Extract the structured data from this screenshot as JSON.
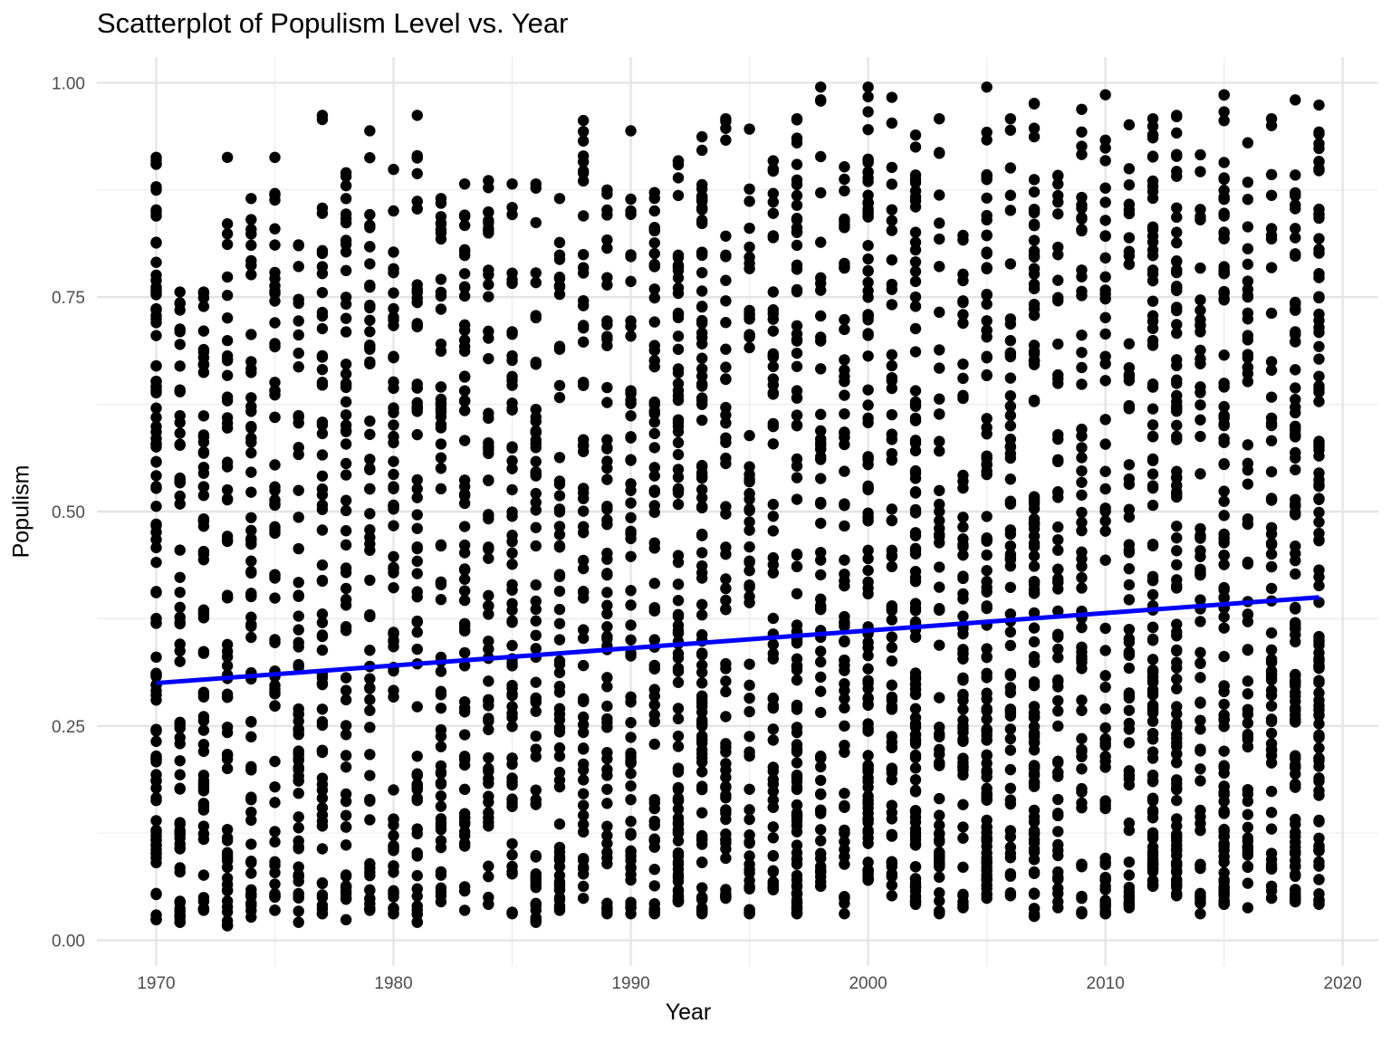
{
  "chart_data": {
    "type": "scatter",
    "title": "Scatterplot of Populism Level vs. Year",
    "xlabel": "Year",
    "ylabel": "Populism",
    "xlim": [
      1967.5,
      2021.5
    ],
    "ylim": [
      -0.03,
      1.03
    ],
    "x_ticks": [
      1970,
      1980,
      1990,
      2000,
      2010,
      2020
    ],
    "x_tick_labels": [
      "1970",
      "1980",
      "1990",
      "2000",
      "2010",
      "2020"
    ],
    "y_ticks": [
      0.0,
      0.25,
      0.5,
      0.75,
      1.0
    ],
    "y_tick_labels": [
      "0.00",
      "0.25",
      "0.50",
      "0.75",
      "1.00"
    ],
    "grid": true,
    "legend": "none",
    "point_color": "#000000",
    "series": [
      {
        "type": "scatter",
        "years": [
          1970,
          1971,
          1972,
          1973,
          1974,
          1975,
          1976,
          1977,
          1978,
          1979,
          1980,
          1981,
          1982,
          1983,
          1984,
          1985,
          1986,
          1987,
          1988,
          1989,
          1990,
          1991,
          1992,
          1993,
          1994,
          1995,
          1996,
          1997,
          1998,
          1999,
          2000,
          2001,
          2002,
          2003,
          2004,
          2005,
          2006,
          2007,
          2008,
          2009,
          2010,
          2011,
          2012,
          2013,
          2014,
          2015,
          2016,
          2017,
          2018,
          2019
        ],
        "y_min": [
          0.024,
          0.021,
          0.035,
          0.017,
          0.027,
          0.035,
          0.021,
          0.031,
          0.024,
          0.035,
          0.031,
          0.021,
          0.045,
          0.035,
          0.042,
          0.031,
          0.021,
          0.035,
          0.049,
          0.031,
          0.031,
          0.031,
          0.045,
          0.031,
          0.049,
          0.031,
          0.059,
          0.031,
          0.063,
          0.031,
          0.07,
          0.052,
          0.042,
          0.031,
          0.038,
          0.049,
          0.052,
          0.028,
          0.038,
          0.031,
          0.031,
          0.038,
          0.063,
          0.052,
          0.031,
          0.042,
          0.038,
          0.049,
          0.045,
          0.042
        ],
        "y_max": [
          0.913,
          0.756,
          0.756,
          0.913,
          0.865,
          0.913,
          0.811,
          0.962,
          0.895,
          0.944,
          0.899,
          0.962,
          0.865,
          0.882,
          0.886,
          0.882,
          0.882,
          0.865,
          0.956,
          0.875,
          0.944,
          0.872,
          0.909,
          0.937,
          0.958,
          0.946,
          0.909,
          0.958,
          0.995,
          0.902,
          0.995,
          0.983,
          0.939,
          0.958,
          0.822,
          0.995,
          0.958,
          0.976,
          0.892,
          0.969,
          0.986,
          0.951,
          0.958,
          0.962,
          0.916,
          0.986,
          0.93,
          0.958,
          0.98,
          0.974
        ],
        "high_spread_years": [
          1970,
          1992,
          1993,
          1997,
          2000,
          2002,
          2005,
          2007,
          2012,
          2013,
          2015,
          2018,
          2019
        ],
        "approx_points_per_year": 60
      },
      {
        "type": "line",
        "name": "",
        "color": "#0000ff",
        "x": [
          1970,
          2019
        ],
        "y": [
          0.3,
          0.4
        ]
      }
    ]
  }
}
